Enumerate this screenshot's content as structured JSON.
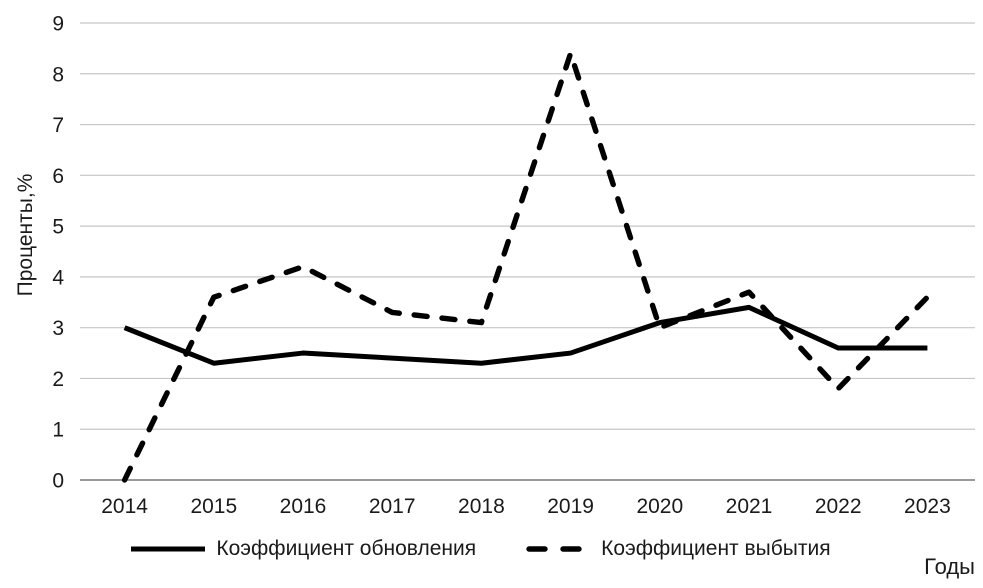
{
  "chart_data": {
    "type": "line",
    "title": "",
    "xlabel": "Годы",
    "ylabel": "Проценты,%",
    "x": [
      "2014",
      "2015",
      "2016",
      "2017",
      "2018",
      "2019",
      "2020",
      "2021",
      "2022",
      "2023"
    ],
    "series": [
      {
        "name": "Коэффициент обновления",
        "style": "solid",
        "values": [
          3.0,
          2.3,
          2.5,
          2.4,
          2.3,
          2.5,
          3.1,
          3.4,
          2.6,
          2.6
        ]
      },
      {
        "name": "Коэффициент выбытия",
        "style": "dashed",
        "values": [
          0.0,
          3.6,
          4.2,
          3.3,
          3.1,
          8.4,
          3.0,
          3.7,
          1.8,
          3.6
        ]
      }
    ],
    "ylim": [
      0,
      9
    ],
    "yticks": [
      0,
      1,
      2,
      3,
      4,
      5,
      6,
      7,
      8,
      9
    ],
    "grid": true,
    "legend_position": "bottom",
    "line_color": "#000000",
    "grid_color": "#c6c6c6",
    "axis_color": "#8c8c8c"
  }
}
